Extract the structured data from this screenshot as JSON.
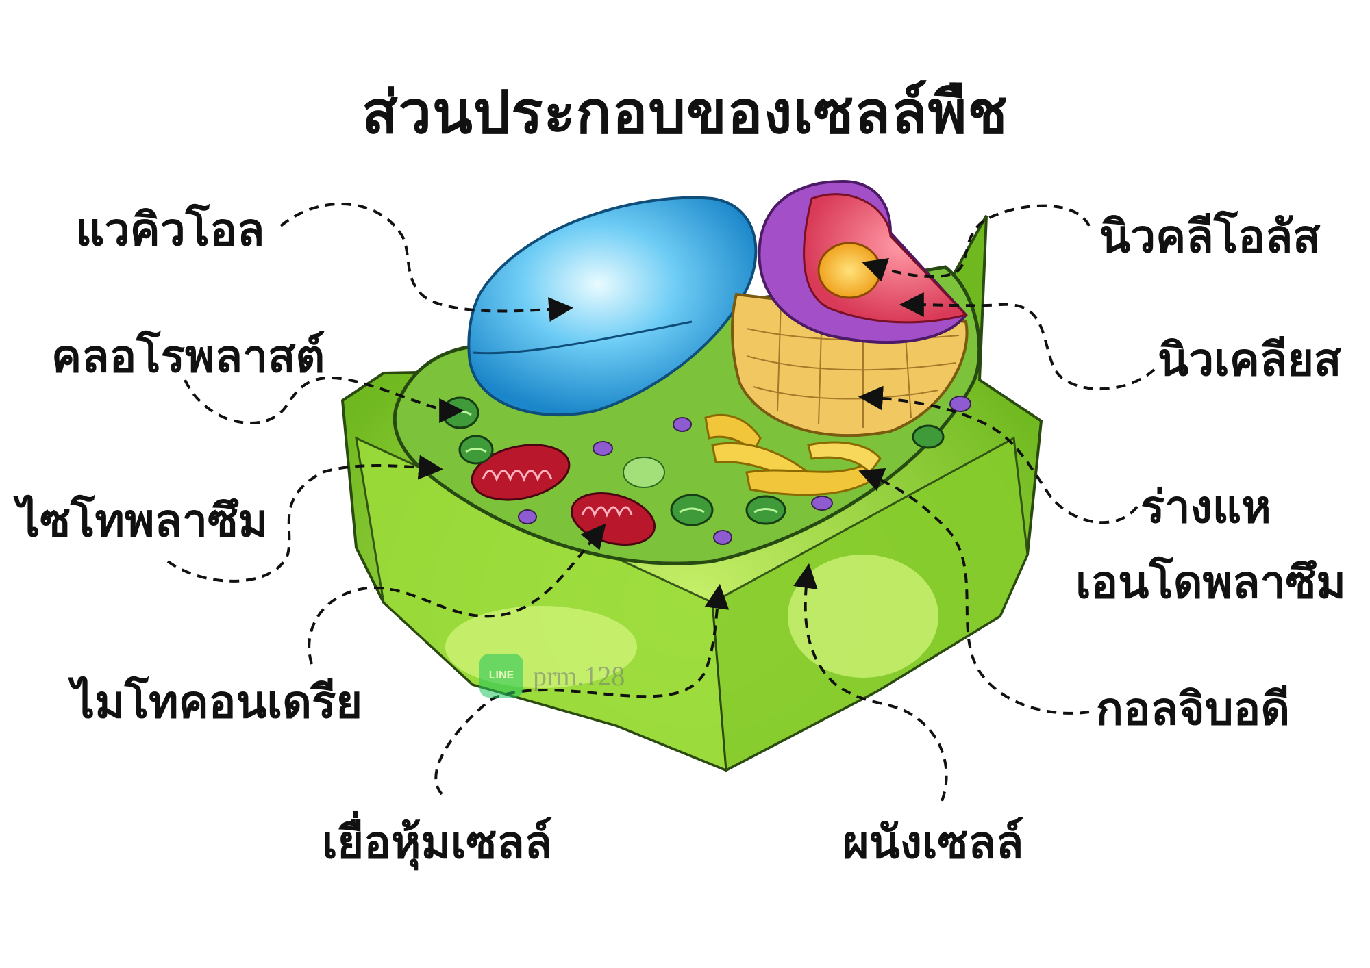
{
  "title": "ส่วนประกอบของเซลล์พืช",
  "labels": {
    "vacuole": "แวคิวโอล",
    "chloroplast": "คลอโรพลาสต์",
    "cytoplasm": "ไซโทพลาซึม",
    "mitochondria": "ไมโทคอนเดรีย",
    "cell_membrane": "เยื่อหุ้มเซลล์",
    "cell_wall": "ผนังเซลล์",
    "nucleolus": "นิวคลีโอลัส",
    "nucleus": "นิวเคลียส",
    "er_line1": "ร่างแห",
    "er_line2": "เอนโดพลาซึม",
    "golgi": "กอลจิบอดี"
  },
  "watermark": {
    "logo_text": "LINE",
    "text": "prm.128"
  },
  "colors": {
    "cell_wall": "#8fd42a",
    "cytoplasm": "#7cc23a",
    "vacuole": "#37a9e6",
    "nucleus_envelope": "#a24fc8",
    "nucleus_inner": "#e2556a",
    "nucleolus": "#f5c328",
    "golgi": "#f2c63a",
    "mitochondria": "#b8172c",
    "chloroplast": "#3f9a3a",
    "arrow": "#111111"
  }
}
